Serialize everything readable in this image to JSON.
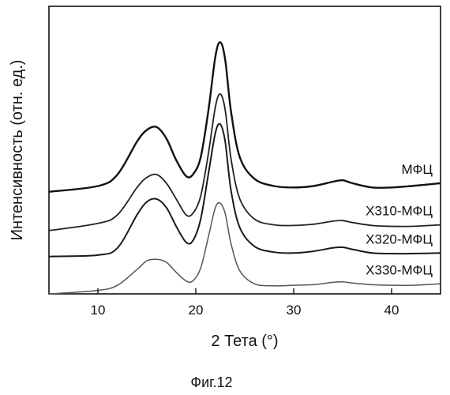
{
  "chart_data": {
    "type": "line",
    "xlabel": "2 Тета (°)",
    "ylabel": "Интенсивность (отн. ед.)",
    "xlim": [
      5,
      45
    ],
    "ylim": [
      0,
      1
    ],
    "xticks": [
      10,
      20,
      30,
      40
    ],
    "yticks": [],
    "y_tick_labels_shown": false,
    "grid": false,
    "legend": "direct labels on the right of each curve",
    "caption": "Фиг.12",
    "series": [
      {
        "name": "МФЦ",
        "offset": 0.355,
        "color": "#111111",
        "stroke_width": 2.4,
        "points": [
          [
            5,
            0.0
          ],
          [
            10,
            0.02
          ],
          [
            12,
            0.06
          ],
          [
            14,
            0.175
          ],
          [
            15,
            0.215
          ],
          [
            16,
            0.225
          ],
          [
            17,
            0.185
          ],
          [
            18,
            0.11
          ],
          [
            19,
            0.055
          ],
          [
            19.7,
            0.06
          ],
          [
            20.5,
            0.12
          ],
          [
            21.3,
            0.285
          ],
          [
            22.0,
            0.47
          ],
          [
            22.5,
            0.52
          ],
          [
            23.0,
            0.46
          ],
          [
            23.6,
            0.28
          ],
          [
            24.5,
            0.12
          ],
          [
            26,
            0.045
          ],
          [
            28,
            0.02
          ],
          [
            30,
            0.015
          ],
          [
            32,
            0.02
          ],
          [
            34,
            0.035
          ],
          [
            35,
            0.04
          ],
          [
            36,
            0.03
          ],
          [
            38,
            0.015
          ],
          [
            40,
            0.015
          ],
          [
            42,
            0.02
          ],
          [
            45,
            0.03
          ]
        ]
      },
      {
        "name": "Х310-МФЦ",
        "offset": 0.22,
        "color": "#222222",
        "stroke_width": 1.8,
        "points": [
          [
            5,
            0.0
          ],
          [
            10,
            0.025
          ],
          [
            12,
            0.055
          ],
          [
            14,
            0.15
          ],
          [
            15,
            0.185
          ],
          [
            16,
            0.195
          ],
          [
            17,
            0.165
          ],
          [
            18,
            0.11
          ],
          [
            19,
            0.055
          ],
          [
            19.7,
            0.06
          ],
          [
            20.5,
            0.12
          ],
          [
            21.3,
            0.27
          ],
          [
            22.0,
            0.43
          ],
          [
            22.5,
            0.475
          ],
          [
            23.0,
            0.42
          ],
          [
            23.6,
            0.25
          ],
          [
            24.5,
            0.11
          ],
          [
            26,
            0.04
          ],
          [
            28,
            0.02
          ],
          [
            30,
            0.018
          ],
          [
            32,
            0.022
          ],
          [
            34,
            0.033
          ],
          [
            35,
            0.035
          ],
          [
            36,
            0.028
          ],
          [
            38,
            0.018
          ],
          [
            40,
            0.015
          ],
          [
            42,
            0.015
          ],
          [
            45,
            0.02
          ]
        ]
      },
      {
        "name": "Х320-МФЦ",
        "offset": 0.13,
        "color": "#1a1a1a",
        "stroke_width": 2.0,
        "points": [
          [
            5,
            0.0
          ],
          [
            10,
            0.005
          ],
          [
            12,
            0.03
          ],
          [
            14,
            0.145
          ],
          [
            15,
            0.19
          ],
          [
            16,
            0.2
          ],
          [
            17,
            0.17
          ],
          [
            18,
            0.105
          ],
          [
            19,
            0.05
          ],
          [
            19.7,
            0.055
          ],
          [
            20.5,
            0.13
          ],
          [
            21.3,
            0.29
          ],
          [
            22.0,
            0.43
          ],
          [
            22.5,
            0.46
          ],
          [
            23.0,
            0.4
          ],
          [
            23.6,
            0.23
          ],
          [
            24.5,
            0.1
          ],
          [
            26,
            0.035
          ],
          [
            28,
            0.015
          ],
          [
            30,
            0.012
          ],
          [
            32,
            0.018
          ],
          [
            34,
            0.03
          ],
          [
            35,
            0.032
          ],
          [
            36,
            0.025
          ],
          [
            38,
            0.012
          ],
          [
            40,
            0.01
          ],
          [
            42,
            0.01
          ],
          [
            45,
            0.012
          ]
        ]
      },
      {
        "name": "Х330-МФЦ",
        "offset": 0.0,
        "color": "#555555",
        "stroke_width": 1.5,
        "points": [
          [
            5,
            0.0
          ],
          [
            10,
            0.012
          ],
          [
            12,
            0.03
          ],
          [
            14,
            0.085
          ],
          [
            15,
            0.115
          ],
          [
            16,
            0.12
          ],
          [
            17,
            0.11
          ],
          [
            18,
            0.075
          ],
          [
            19,
            0.045
          ],
          [
            19.7,
            0.045
          ],
          [
            20.5,
            0.09
          ],
          [
            21.3,
            0.2
          ],
          [
            22.0,
            0.3
          ],
          [
            22.5,
            0.315
          ],
          [
            23.0,
            0.28
          ],
          [
            23.6,
            0.175
          ],
          [
            24.5,
            0.08
          ],
          [
            26,
            0.035
          ],
          [
            28,
            0.028
          ],
          [
            30,
            0.03
          ],
          [
            32,
            0.032
          ],
          [
            34,
            0.04
          ],
          [
            35,
            0.042
          ],
          [
            36,
            0.038
          ],
          [
            38,
            0.032
          ],
          [
            40,
            0.03
          ],
          [
            42,
            0.03
          ],
          [
            45,
            0.035
          ]
        ]
      }
    ]
  }
}
